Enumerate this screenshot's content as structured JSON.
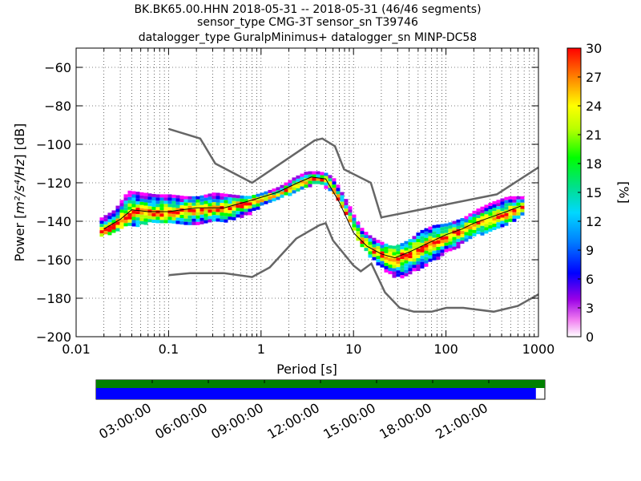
{
  "chart_data": {
    "type": "heatmap",
    "title_lines": [
      "BK.BK65.00.HHN   2018-05-31 -- 2018-05-31  (46/46 segments)",
      "sensor_type CMG-3T sensor_sn T39746",
      "datalogger_type GuralpMinimus+ datalogger_sn MINP-DC58"
    ],
    "xlabel": "Period [s]",
    "ylabel_prefix": "Power [",
    "ylabel_units": "m²/s⁴/Hz",
    "ylabel_suffix": "] [dB]",
    "x_scale": "log",
    "xlim": [
      0.01,
      1000
    ],
    "ylim": [
      -200,
      -50
    ],
    "x_ticks": [
      {
        "value": 0.01,
        "label": "0.01"
      },
      {
        "value": 0.1,
        "label": "0.1"
      },
      {
        "value": 1,
        "label": "1"
      },
      {
        "value": 10,
        "label": "10"
      },
      {
        "value": 100,
        "label": "100"
      },
      {
        "value": 1000,
        "label": "1000"
      }
    ],
    "y_ticks": [
      {
        "value": -60,
        "label": "−60"
      },
      {
        "value": -80,
        "label": "−80"
      },
      {
        "value": -100,
        "label": "−100"
      },
      {
        "value": -120,
        "label": "−120"
      },
      {
        "value": -140,
        "label": "−140"
      },
      {
        "value": -160,
        "label": "−160"
      },
      {
        "value": -180,
        "label": "−180"
      },
      {
        "value": -200,
        "label": "−200"
      }
    ],
    "colorbar": {
      "label": "[%]",
      "range": [
        0,
        30
      ],
      "ticks": [
        {
          "value": 0,
          "label": "0"
        },
        {
          "value": 3,
          "label": "3"
        },
        {
          "value": 6,
          "label": "6"
        },
        {
          "value": 9,
          "label": "9"
        },
        {
          "value": 12,
          "label": "12"
        },
        {
          "value": 15,
          "label": "15"
        },
        {
          "value": 18,
          "label": "18"
        },
        {
          "value": 21,
          "label": "21"
        },
        {
          "value": 24,
          "label": "24"
        },
        {
          "value": 27,
          "label": "27"
        },
        {
          "value": 30,
          "label": "30"
        }
      ]
    },
    "noise_models": {
      "high": [
        {
          "x": 0.1,
          "y": -92
        },
        {
          "x": 0.22,
          "y": -97
        },
        {
          "x": 0.32,
          "y": -110
        },
        {
          "x": 0.8,
          "y": -120
        },
        {
          "x": 3.8,
          "y": -98
        },
        {
          "x": 4.6,
          "y": -97
        },
        {
          "x": 6.3,
          "y": -101
        },
        {
          "x": 7.9,
          "y": -113
        },
        {
          "x": 15.4,
          "y": -120
        },
        {
          "x": 20,
          "y": -138
        },
        {
          "x": 354.8,
          "y": -126
        },
        {
          "x": 1000,
          "y": -112
        }
      ],
      "low": [
        {
          "x": 0.1,
          "y": -168
        },
        {
          "x": 0.17,
          "y": -167
        },
        {
          "x": 0.4,
          "y": -167
        },
        {
          "x": 0.8,
          "y": -169
        },
        {
          "x": 1.24,
          "y": -164
        },
        {
          "x": 2.4,
          "y": -149
        },
        {
          "x": 4.3,
          "y": -142
        },
        {
          "x": 5,
          "y": -141
        },
        {
          "x": 6,
          "y": -150
        },
        {
          "x": 10,
          "y": -163
        },
        {
          "x": 12,
          "y": -166
        },
        {
          "x": 15.6,
          "y": -162
        },
        {
          "x": 21.9,
          "y": -177
        },
        {
          "x": 31.6,
          "y": -185
        },
        {
          "x": 45,
          "y": -187
        },
        {
          "x": 70,
          "y": -187
        },
        {
          "x": 101,
          "y": -185
        },
        {
          "x": 154,
          "y": -185
        },
        {
          "x": 328,
          "y": -187
        },
        {
          "x": 600,
          "y": -184
        },
        {
          "x": 1000,
          "y": -178
        }
      ]
    },
    "mode_curve": [
      {
        "x": 0.02,
        "y": -144
      },
      {
        "x": 0.03,
        "y": -139
      },
      {
        "x": 0.04,
        "y": -134
      },
      {
        "x": 0.06,
        "y": -135
      },
      {
        "x": 0.1,
        "y": -135
      },
      {
        "x": 0.2,
        "y": -133
      },
      {
        "x": 0.4,
        "y": -133
      },
      {
        "x": 0.8,
        "y": -129
      },
      {
        "x": 1.5,
        "y": -125
      },
      {
        "x": 2.5,
        "y": -120
      },
      {
        "x": 3.5,
        "y": -117
      },
      {
        "x": 5,
        "y": -118
      },
      {
        "x": 7,
        "y": -130
      },
      {
        "x": 10,
        "y": -146
      },
      {
        "x": 14,
        "y": -153
      },
      {
        "x": 20,
        "y": -157
      },
      {
        "x": 28,
        "y": -159
      },
      {
        "x": 40,
        "y": -156
      },
      {
        "x": 60,
        "y": -152
      },
      {
        "x": 100,
        "y": -147
      },
      {
        "x": 150,
        "y": -144
      },
      {
        "x": 200,
        "y": -141
      },
      {
        "x": 300,
        "y": -138
      },
      {
        "x": 450,
        "y": -135
      },
      {
        "x": 650,
        "y": -132
      }
    ],
    "density_band": [
      {
        "x": 0.018,
        "lo": -147,
        "hi": -138
      },
      {
        "x": 0.025,
        "lo": -145,
        "hi": -134
      },
      {
        "x": 0.035,
        "lo": -142,
        "hi": -124
      },
      {
        "x": 0.05,
        "lo": -141,
        "hi": -125
      },
      {
        "x": 0.07,
        "lo": -140,
        "hi": -126
      },
      {
        "x": 0.1,
        "lo": -141,
        "hi": -126
      },
      {
        "x": 0.15,
        "lo": -142,
        "hi": -127
      },
      {
        "x": 0.2,
        "lo": -141,
        "hi": -127
      },
      {
        "x": 0.3,
        "lo": -140,
        "hi": -125
      },
      {
        "x": 0.45,
        "lo": -139,
        "hi": -126
      },
      {
        "x": 0.7,
        "lo": -136,
        "hi": -127
      },
      {
        "x": 1,
        "lo": -131,
        "hi": -125
      },
      {
        "x": 1.5,
        "lo": -128,
        "hi": -122
      },
      {
        "x": 2.2,
        "lo": -124,
        "hi": -117
      },
      {
        "x": 3,
        "lo": -121,
        "hi": -114
      },
      {
        "x": 4,
        "lo": -120,
        "hi": -114
      },
      {
        "x": 5,
        "lo": -122,
        "hi": -115
      },
      {
        "x": 6,
        "lo": -126,
        "hi": -118
      },
      {
        "x": 7,
        "lo": -132,
        "hi": -124
      },
      {
        "x": 8.5,
        "lo": -139,
        "hi": -131
      },
      {
        "x": 10,
        "lo": -146,
        "hi": -138
      },
      {
        "x": 12,
        "lo": -153,
        "hi": -144
      },
      {
        "x": 15,
        "lo": -159,
        "hi": -148
      },
      {
        "x": 20,
        "lo": -164,
        "hi": -151
      },
      {
        "x": 25,
        "lo": -168,
        "hi": -153
      },
      {
        "x": 30,
        "lo": -169,
        "hi": -152
      },
      {
        "x": 40,
        "lo": -166,
        "hi": -149
      },
      {
        "x": 50,
        "lo": -164,
        "hi": -145
      },
      {
        "x": 70,
        "lo": -160,
        "hi": -142
      },
      {
        "x": 100,
        "lo": -155,
        "hi": -141
      },
      {
        "x": 150,
        "lo": -151,
        "hi": -138
      },
      {
        "x": 200,
        "lo": -147,
        "hi": -134
      },
      {
        "x": 300,
        "lo": -145,
        "hi": -130
      },
      {
        "x": 450,
        "lo": -141,
        "hi": -127
      },
      {
        "x": 650,
        "lo": -136,
        "hi": -127
      }
    ],
    "time_coverage": {
      "labels": [
        "03:00:00",
        "06:00:00",
        "09:00:00",
        "12:00:00",
        "15:00:00",
        "18:00:00",
        "21:00:00"
      ],
      "label_hours": [
        3,
        6,
        9,
        12,
        15,
        18,
        21
      ],
      "span_hours": 24,
      "green_fraction": 1.0,
      "blue_fraction": 0.98,
      "green_color": "#008000",
      "blue_color": "#0000ff"
    }
  }
}
